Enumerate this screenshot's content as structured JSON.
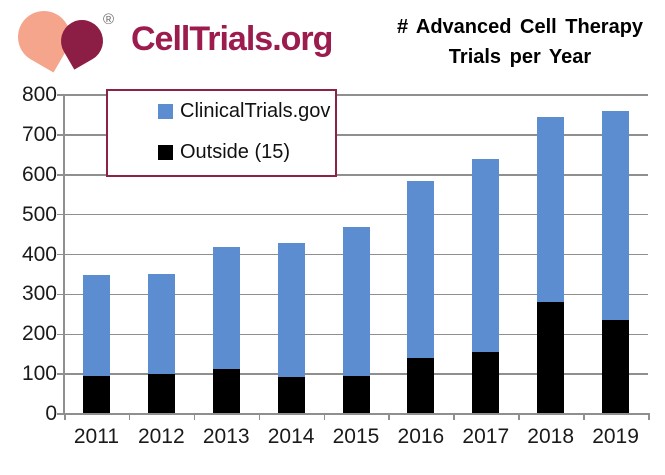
{
  "brand": {
    "name": "CellTrials.org",
    "registered_mark": "®",
    "colors": {
      "heart_left": "#F4A58C",
      "heart_right": "#8C1D45",
      "text": "#9C1C4E",
      "legend_border": "#8C2346"
    }
  },
  "title": {
    "line1": "# Advanced Cell Therapy",
    "line2": "Trials per Year"
  },
  "legend": {
    "items": [
      {
        "label": "ClinicalTrials.gov",
        "color": "#5B8DD0"
      },
      {
        "label": "Outside (15)",
        "color": "#000000"
      }
    ]
  },
  "chart_data": {
    "type": "bar",
    "stacked": true,
    "title": "# Advanced Cell Therapy Trials per Year",
    "categories": [
      "2011",
      "2012",
      "2013",
      "2014",
      "2015",
      "2016",
      "2017",
      "2018",
      "2019"
    ],
    "series": [
      {
        "name": "Outside (15)",
        "color": "#000000",
        "values": [
          95,
          100,
          113,
          93,
          96,
          141,
          156,
          281,
          236
        ]
      },
      {
        "name": "ClinicalTrials.gov",
        "color": "#5B8DD0",
        "values": [
          253,
          252,
          305,
          336,
          374,
          443,
          483,
          464,
          524
        ]
      }
    ],
    "totals": [
      348,
      352,
      418,
      429,
      470,
      584,
      639,
      745,
      760
    ],
    "xlabel": "",
    "ylabel": "",
    "ylim": [
      0,
      800
    ],
    "yticks": [
      "0",
      "100",
      "200",
      "300",
      "400",
      "500",
      "600",
      "700",
      "800"
    ],
    "grid": true,
    "gridline_color": "#8F8F8F",
    "legend_position": "top-left"
  }
}
